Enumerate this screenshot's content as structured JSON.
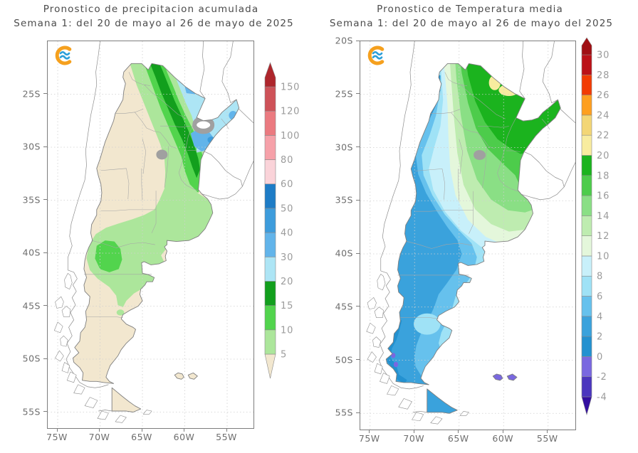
{
  "panels": [
    {
      "name": "precipitation-forecast-map",
      "title_line1": "Pronostico de precipitacion acumulada",
      "title_line2": "Semana 1: del 20 de mayo al 26 de mayo de 2025",
      "lat_ticks": [
        {
          "label": "25S",
          "deg": 25
        },
        {
          "label": "30S",
          "deg": 30
        },
        {
          "label": "35S",
          "deg": 35
        },
        {
          "label": "40S",
          "deg": 40
        },
        {
          "label": "45S",
          "deg": 45
        },
        {
          "label": "50S",
          "deg": 50
        },
        {
          "label": "55S",
          "deg": 55
        }
      ],
      "lon_ticks": [
        {
          "label": "75W",
          "lon": -75
        },
        {
          "label": "70W",
          "lon": -70
        },
        {
          "label": "65W",
          "lon": -65
        },
        {
          "label": "60W",
          "lon": -60
        },
        {
          "label": "55W",
          "lon": -55
        }
      ],
      "colorbar": {
        "levels": [
          "5",
          "10",
          "15",
          "20",
          "30",
          "40",
          "50",
          "60",
          "80",
          "100",
          "120",
          "150"
        ],
        "palette": "precip"
      },
      "logo": "crc-sas-logo"
    },
    {
      "name": "temperature-forecast-map",
      "title_line1": "Pronostico de Temperatura media",
      "title_line2": "Semana 1: del 20 de mayo al 26 de mayo del 2025",
      "lat_ticks": [
        {
          "label": "20S",
          "deg": 20
        },
        {
          "label": "25S",
          "deg": 25
        },
        {
          "label": "30S",
          "deg": 30
        },
        {
          "label": "35S",
          "deg": 35
        },
        {
          "label": "40S",
          "deg": 40
        },
        {
          "label": "45S",
          "deg": 45
        },
        {
          "label": "50S",
          "deg": 50
        },
        {
          "label": "55S",
          "deg": 55
        }
      ],
      "lon_ticks": [
        {
          "label": "75W",
          "lon": -75
        },
        {
          "label": "70W",
          "lon": -70
        },
        {
          "label": "65W",
          "lon": -65
        },
        {
          "label": "60W",
          "lon": -60
        },
        {
          "label": "55W",
          "lon": -55
        }
      ],
      "colorbar": {
        "levels": [
          "-4",
          "-2",
          "0",
          "2",
          "4",
          "6",
          "8",
          "10",
          "12",
          "14",
          "16",
          "18",
          "20",
          "22",
          "24",
          "26",
          "28",
          "30"
        ],
        "palette": "temp"
      },
      "logo": "crc-sas-logo"
    }
  ],
  "palettes": {
    "precip": [
      "#F2E7CF",
      "#ACE69B",
      "#52D44D",
      "#129F1D",
      "#ADE5F5",
      "#62B4EA",
      "#3D9CDC",
      "#1E7CC6",
      "#FAD3D9",
      "#F6A1A9",
      "#EB7A80",
      "#CE5258",
      "#AE262C"
    ],
    "temp": [
      "#330FA0",
      "#4B36BE",
      "#7968E0",
      "#2391D0",
      "#3AA2DC",
      "#66C1ED",
      "#9FE2F6",
      "#C8F0FA",
      "#E4F7DB",
      "#BEECB0",
      "#8ADF85",
      "#4DCC4B",
      "#1BB31E",
      "#F8EC9F",
      "#F3D675",
      "#FE9F1F",
      "#F23B02",
      "#BB1117",
      "#A00F13"
    ]
  },
  "chart_data": [
    {
      "type": "heatmap",
      "subtype": "contour-map",
      "title": "Pronostico de precipitacion acumulada",
      "subtitle": "Semana 1: del 20 de mayo al 26 de mayo de 2025",
      "region": "Argentina",
      "x_ticks": [
        "75W",
        "70W",
        "65W",
        "60W",
        "55W"
      ],
      "y_ticks": [
        "25S",
        "30S",
        "35S",
        "40S",
        "45S",
        "50S",
        "55S"
      ],
      "scale_levels": [
        5,
        10,
        15,
        20,
        30,
        40,
        50,
        60,
        80,
        100,
        120,
        150
      ],
      "scale_colors": [
        "#F2E7CF",
        "#ACE69B",
        "#52D44D",
        "#129F1D",
        "#ADE5F5",
        "#62B4EA",
        "#3D9CDC",
        "#1E7CC6",
        "#FAD3D9",
        "#F6A1A9",
        "#EB7A80",
        "#CE5258",
        "#AE262C"
      ],
      "features": [
        "below 5 (beige) over Cuyo, La Pampa and most of Patagonia",
        "5-15 greens over NOA-Litoral diagonal band and Buenos Aires",
        "15-20 dark green band from Salta southeast to Entre Rios",
        "20-30 pale blue over Formosa, east Chaco, Corrientes and Misiones",
        "30-40 blue over south Corrientes and NE Formosa, local 40-50 spot near the Uruguay river",
        "5-15 green patch over Neuquen / Rio Negro (38S-43S)"
      ]
    },
    {
      "type": "heatmap",
      "subtype": "contour-map",
      "title": "Pronostico de Temperatura media",
      "subtitle": "Semana 1: del 20 de mayo al 26 de mayo del 2025",
      "region": "Argentina",
      "x_ticks": [
        "75W",
        "70W",
        "65W",
        "60W",
        "55W"
      ],
      "y_ticks": [
        "20S",
        "25S",
        "30S",
        "35S",
        "40S",
        "45S",
        "50S",
        "55S"
      ],
      "scale_levels": [
        -4,
        -2,
        0,
        2,
        4,
        6,
        8,
        10,
        12,
        14,
        16,
        18,
        20,
        22,
        24,
        26,
        28,
        30
      ],
      "scale_colors": [
        "#330FA0",
        "#4B36BE",
        "#7968E0",
        "#2391D0",
        "#3AA2DC",
        "#66C1ED",
        "#9FE2F6",
        "#C8F0FA",
        "#E4F7DB",
        "#BEECB0",
        "#8ADF85",
        "#4DCC4B",
        "#1BB31E",
        "#F8EC9F",
        "#F3D675",
        "#FE9F1F",
        "#F23B02",
        "#BB1117",
        "#A00F13"
      ],
      "features": [
        "18-20 dark green over the north (Chaco, Formosa, Corrientes, Misiones)",
        "20-22 pale yellow patches in Formosa / east Salta",
        "10-16 greens over the Pampas",
        "2-8 blues along the Andes and over Patagonia",
        "0-2 dark blue in Tierra del Fuego and SW Santa Cruz",
        "-2 to 0 (purple) on Islas Malvinas"
      ]
    }
  ]
}
